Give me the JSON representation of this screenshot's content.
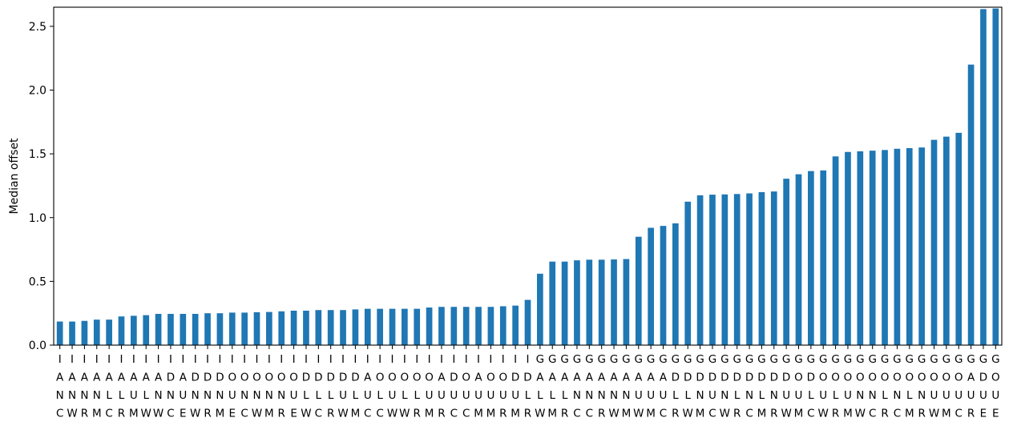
{
  "chart_data": {
    "type": "bar",
    "title": "",
    "xlabel": "",
    "ylabel": "Median offset",
    "ylim": [
      0,
      2.65
    ],
    "yticks": [
      "0.0",
      "0.5",
      "1.0",
      "1.5",
      "2.0",
      "2.5"
    ],
    "bar_color": "#1f77b4",
    "grid": false,
    "legend": "none",
    "categories": [
      "IANC",
      "IANW",
      "IANR",
      "IANM",
      "IALC",
      "IALR",
      "IAUM",
      "IALW",
      "IANW",
      "IDNC",
      "IAUE",
      "IDNW",
      "IDNR",
      "IDNM",
      "IOUE",
      "IONC",
      "IONW",
      "IONM",
      "IONR",
      "IOUE",
      "IDLW",
      "IDLC",
      "IDLR",
      "IDUW",
      "IDLM",
      "IAUC",
      "IOLC",
      "IOUW",
      "IOLW",
      "IOLR",
      "IOUM",
      "IAUR",
      "IDUC",
      "IOUC",
      "IAUM",
      "IOUM",
      "IOUR",
      "IDUM",
      "IDLR",
      "GALW",
      "GALM",
      "GALR",
      "GANC",
      "GANC",
      "GANR",
      "GANW",
      "GANM",
      "GAUW",
      "GAUM",
      "GAUC",
      "GDLR",
      "GDLW",
      "GDNM",
      "GDUC",
      "GDNW",
      "GDLR",
      "GDNC",
      "GDLM",
      "GDNR",
      "GDUW",
      "GOUM",
      "GDLC",
      "GOUW",
      "GOLR",
      "GOUM",
      "GONW",
      "GONC",
      "GOLR",
      "GONC",
      "GOLM",
      "GONR",
      "GOUW",
      "GOUM",
      "GOUC",
      "GAUR",
      "GDUE",
      "GOUE"
    ],
    "values": [
      0.185,
      0.185,
      0.19,
      0.2,
      0.2,
      0.225,
      0.23,
      0.235,
      0.245,
      0.245,
      0.245,
      0.245,
      0.25,
      0.25,
      0.255,
      0.255,
      0.258,
      0.26,
      0.265,
      0.27,
      0.27,
      0.275,
      0.275,
      0.275,
      0.28,
      0.285,
      0.285,
      0.285,
      0.285,
      0.285,
      0.295,
      0.3,
      0.3,
      0.3,
      0.3,
      0.3,
      0.305,
      0.31,
      0.355,
      0.56,
      0.655,
      0.655,
      0.665,
      0.67,
      0.67,
      0.672,
      0.675,
      0.85,
      0.92,
      0.935,
      0.955,
      1.125,
      1.175,
      1.18,
      1.182,
      1.185,
      1.19,
      1.2,
      1.205,
      1.305,
      1.34,
      1.365,
      1.37,
      1.48,
      1.515,
      1.52,
      1.525,
      1.53,
      1.54,
      1.545,
      1.55,
      1.61,
      1.635,
      1.665,
      2.2,
      2.635,
      2.64
    ]
  }
}
